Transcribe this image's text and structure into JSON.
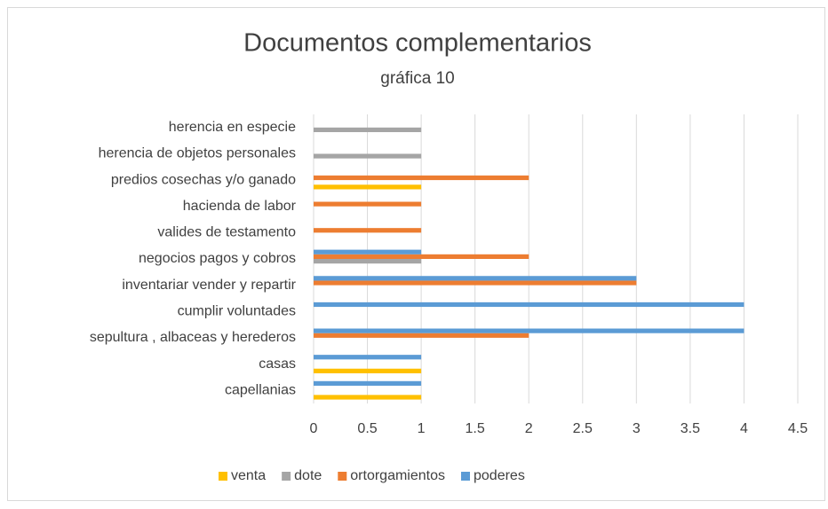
{
  "chart_data": {
    "type": "bar",
    "orientation": "horizontal",
    "title": "Documentos complementarios",
    "subtitle": "gráfica 10",
    "categories": [
      "capellanias",
      "casas",
      "sepultura , albaceas y herederos",
      "cumplir voluntades",
      "inventariar vender y repartir",
      "negocios pagos y cobros",
      "valides de testamento",
      "hacienda de labor",
      "predios cosechas y/o ganado",
      "herencia de objetos personales",
      "herencia en especie"
    ],
    "series": [
      {
        "name": "venta",
        "color": "#FFC000",
        "values": [
          1,
          1,
          null,
          null,
          null,
          null,
          null,
          null,
          1,
          null,
          null
        ]
      },
      {
        "name": "dote",
        "color": "#A5A5A5",
        "values": [
          null,
          null,
          null,
          null,
          null,
          1,
          null,
          null,
          null,
          1,
          1
        ]
      },
      {
        "name": "ortorgamientos",
        "color": "#ED7D31",
        "values": [
          null,
          null,
          2,
          null,
          3,
          2,
          1,
          1,
          2,
          null,
          null
        ]
      },
      {
        "name": "poderes",
        "color": "#5B9BD5",
        "values": [
          1,
          1,
          4,
          4,
          3,
          1,
          null,
          null,
          null,
          null,
          null
        ]
      }
    ],
    "xlim": [
      0,
      4.5
    ],
    "xticks": [
      0,
      0.5,
      1,
      1.5,
      2,
      2.5,
      3,
      3.5,
      4,
      4.5
    ],
    "grid": true,
    "legend": "bottom"
  }
}
